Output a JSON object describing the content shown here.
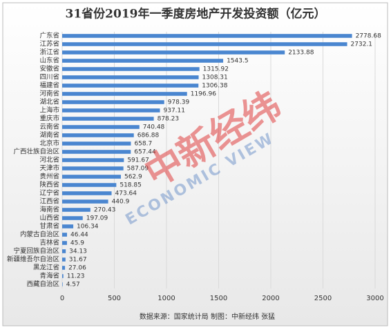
{
  "chart_data": {
    "type": "bar",
    "orientation": "horizontal",
    "title": "31省份2019年一季度房地产开发投资额（亿元）",
    "categories": [
      "广东省",
      "江苏省",
      "浙江省",
      "山东省",
      "安徽省",
      "四川省",
      "福建省",
      "河南省",
      "湖北省",
      "上海市",
      "重庆市",
      "云南省",
      "湖南省",
      "北京市",
      "广西壮族自治区",
      "河北省",
      "天津市",
      "贵州省",
      "陕西省",
      "辽宁省",
      "江西省",
      "海南省",
      "山西省",
      "甘肃省",
      "内蒙古自治区",
      "吉林省",
      "宁夏回族自治区",
      "新疆维吾尔自治区",
      "黑龙江省",
      "青海省",
      "西藏自治区"
    ],
    "values": [
      2778.68,
      2732.1,
      2133.88,
      1543.5,
      1315.92,
      1308.31,
      1306.38,
      1196.96,
      978.39,
      937.11,
      878.23,
      740.48,
      686.88,
      658.7,
      657.44,
      591.67,
      587.09,
      562.9,
      518.85,
      473.64,
      440.9,
      270.43,
      197.09,
      106.34,
      46.44,
      45.9,
      34.13,
      31.67,
      27.06,
      11.23,
      4.57
    ],
    "color": "#4a86d0",
    "xlim": [
      0,
      3000
    ],
    "xticks": [
      0,
      500,
      1000,
      1500,
      2000,
      2500,
      3000
    ],
    "grid": true,
    "source": "数据来源：国家统计局  制图：中新经纬  张猛",
    "watermark": [
      "中新经纬",
      "ECONOMIC VIEW"
    ]
  }
}
